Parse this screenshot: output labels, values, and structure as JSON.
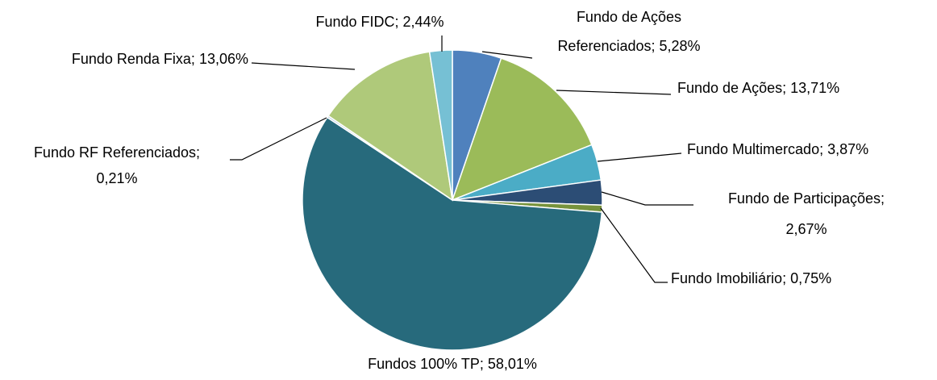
{
  "chart_data": {
    "type": "pie",
    "categories": [
      "Fundo de Ações Referenciados;",
      "Fundo de Ações;",
      "Fundo Multimercado;",
      "Fundo de Participações;",
      "Fundo Imobiliário;",
      "Fundos 100% TP;",
      "Fundo RF Referenciados;",
      "Fundo Renda Fixa;",
      "Fundo FIDC;"
    ],
    "values": [
      5.28,
      13.71,
      3.87,
      2.67,
      0.75,
      58.01,
      0.21,
      13.06,
      2.44
    ],
    "value_labels": [
      "5,28%",
      "13,71%",
      "3,87%",
      "2,67%",
      "0,75%",
      "58,01%",
      "0,21%",
      "13,06%",
      "2,44%"
    ],
    "colors": [
      "#4f81bd",
      "#9bbb59",
      "#4bacc6",
      "#2c4d75",
      "#77933c",
      "#276a7c",
      "#b9cde5",
      "#afc97a",
      "#76c0d4"
    ]
  }
}
